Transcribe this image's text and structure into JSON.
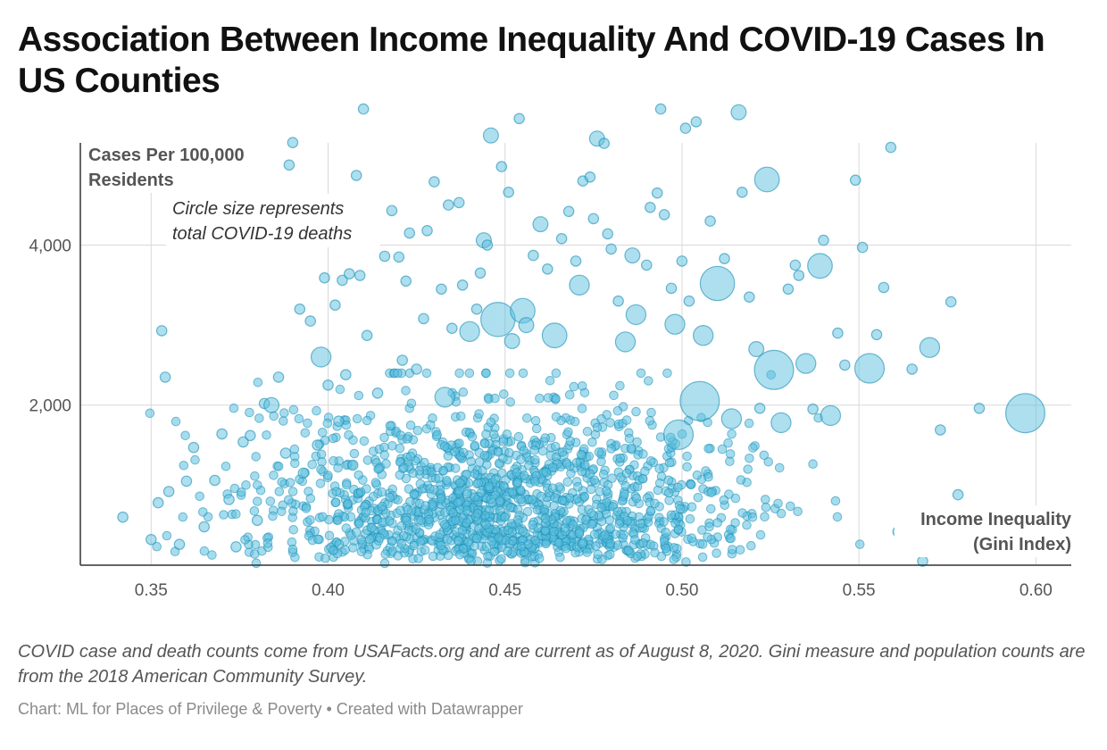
{
  "title": "Association Between Income Inequality And COVID-19 Cases In US Counties",
  "footnote": "COVID case and death counts come from USAFacts.org and are current as of August 8, 2020. Gini measure and population counts are from the 2018 American Community Survey.",
  "credit": "Chart: ML for Places of Privilege & Poverty • Created with Datawrapper",
  "chart_data": {
    "type": "scatter",
    "title": "Association Between Income Inequality And COVID-19 Cases In US Counties",
    "xlabel": "Income Inequality (Gini Index)",
    "xlabel_lines": [
      "Income Inequality",
      "(Gini Index)"
    ],
    "ylabel": "Cases Per 100,000 Residents",
    "ylabel_lines": [
      "Cases Per 100,000",
      "Residents"
    ],
    "size_note_lines": [
      "Circle size represents",
      "total COVID-19 deaths"
    ],
    "xlim": [
      0.33,
      0.61
    ],
    "ylim": [
      0,
      5500
    ],
    "x_ticks": [
      0.35,
      0.4,
      0.45,
      0.5,
      0.55,
      0.6
    ],
    "x_tick_labels": [
      "0.35",
      "0.40",
      "0.45",
      "0.50",
      "0.55",
      "0.60"
    ],
    "y_ticks": [
      2000,
      4000
    ],
    "y_tick_labels": [
      "2,000",
      "4,000"
    ],
    "grid": true,
    "point_color": "#5bc0de",
    "point_stroke": "#1a8db5",
    "points": [
      {
        "x": 0.342,
        "y": 600,
        "r": 1
      },
      {
        "x": 0.35,
        "y": 320,
        "r": 1
      },
      {
        "x": 0.352,
        "y": 780,
        "r": 1
      },
      {
        "x": 0.353,
        "y": 2930,
        "r": 1
      },
      {
        "x": 0.354,
        "y": 2350,
        "r": 1
      },
      {
        "x": 0.355,
        "y": 920,
        "r": 1
      },
      {
        "x": 0.358,
        "y": 260,
        "r": 1
      },
      {
        "x": 0.36,
        "y": 1050,
        "r": 1
      },
      {
        "x": 0.362,
        "y": 1470,
        "r": 1
      },
      {
        "x": 0.365,
        "y": 480,
        "r": 1
      },
      {
        "x": 0.368,
        "y": 1060,
        "r": 1
      },
      {
        "x": 0.37,
        "y": 1640,
        "r": 1
      },
      {
        "x": 0.372,
        "y": 820,
        "r": 1
      },
      {
        "x": 0.374,
        "y": 230,
        "r": 1
      },
      {
        "x": 0.376,
        "y": 1540,
        "r": 1
      },
      {
        "x": 0.378,
        "y": 1620,
        "r": 1
      },
      {
        "x": 0.38,
        "y": 560,
        "r": 1
      },
      {
        "x": 0.382,
        "y": 2020,
        "r": 1
      },
      {
        "x": 0.384,
        "y": 2000,
        "r": 2
      },
      {
        "x": 0.386,
        "y": 2350,
        "r": 1
      },
      {
        "x": 0.388,
        "y": 1400,
        "r": 1
      },
      {
        "x": 0.389,
        "y": 5000,
        "r": 1
      },
      {
        "x": 0.39,
        "y": 5280,
        "r": 1
      },
      {
        "x": 0.392,
        "y": 3200,
        "r": 1
      },
      {
        "x": 0.393,
        "y": 1150,
        "r": 1
      },
      {
        "x": 0.395,
        "y": 3050,
        "r": 1
      },
      {
        "x": 0.397,
        "y": 1500,
        "r": 1
      },
      {
        "x": 0.399,
        "y": 3590,
        "r": 1
      },
      {
        "x": 0.4,
        "y": 2250,
        "r": 1
      },
      {
        "x": 0.398,
        "y": 2600,
        "r": 3
      },
      {
        "x": 0.402,
        "y": 3250,
        "r": 1
      },
      {
        "x": 0.403,
        "y": 1800,
        "r": 1
      },
      {
        "x": 0.404,
        "y": 3560,
        "r": 1
      },
      {
        "x": 0.405,
        "y": 2380,
        "r": 1
      },
      {
        "x": 0.406,
        "y": 3640,
        "r": 1
      },
      {
        "x": 0.407,
        "y": 1250,
        "r": 1
      },
      {
        "x": 0.408,
        "y": 4870,
        "r": 1
      },
      {
        "x": 0.409,
        "y": 3620,
        "r": 1
      },
      {
        "x": 0.41,
        "y": 5700,
        "r": 1
      },
      {
        "x": 0.411,
        "y": 2870,
        "r": 1
      },
      {
        "x": 0.412,
        "y": 4300,
        "r": 1
      },
      {
        "x": 0.414,
        "y": 2150,
        "r": 1
      },
      {
        "x": 0.416,
        "y": 3860,
        "r": 1
      },
      {
        "x": 0.418,
        "y": 4430,
        "r": 1
      },
      {
        "x": 0.42,
        "y": 3850,
        "r": 1
      },
      {
        "x": 0.421,
        "y": 2560,
        "r": 1
      },
      {
        "x": 0.422,
        "y": 3550,
        "r": 1
      },
      {
        "x": 0.423,
        "y": 4150,
        "r": 1
      },
      {
        "x": 0.425,
        "y": 2450,
        "r": 1
      },
      {
        "x": 0.427,
        "y": 3080,
        "r": 1
      },
      {
        "x": 0.428,
        "y": 4180,
        "r": 1
      },
      {
        "x": 0.43,
        "y": 4790,
        "r": 1
      },
      {
        "x": 0.432,
        "y": 3450,
        "r": 1
      },
      {
        "x": 0.433,
        "y": 2100,
        "r": 3
      },
      {
        "x": 0.434,
        "y": 4500,
        "r": 1
      },
      {
        "x": 0.435,
        "y": 2960,
        "r": 1
      },
      {
        "x": 0.437,
        "y": 4530,
        "r": 1
      },
      {
        "x": 0.438,
        "y": 3500,
        "r": 1
      },
      {
        "x": 0.44,
        "y": 2920,
        "r": 3
      },
      {
        "x": 0.442,
        "y": 3200,
        "r": 1
      },
      {
        "x": 0.443,
        "y": 3650,
        "r": 1
      },
      {
        "x": 0.444,
        "y": 4060,
        "r": 2
      },
      {
        "x": 0.445,
        "y": 4000,
        "r": 1
      },
      {
        "x": 0.446,
        "y": 5370,
        "r": 2
      },
      {
        "x": 0.448,
        "y": 3070,
        "r": 6
      },
      {
        "x": 0.449,
        "y": 4980,
        "r": 1
      },
      {
        "x": 0.451,
        "y": 4660,
        "r": 1
      },
      {
        "x": 0.452,
        "y": 2800,
        "r": 2
      },
      {
        "x": 0.454,
        "y": 5580,
        "r": 1
      },
      {
        "x": 0.455,
        "y": 3180,
        "r": 4
      },
      {
        "x": 0.456,
        "y": 3000,
        "r": 2
      },
      {
        "x": 0.458,
        "y": 3870,
        "r": 1
      },
      {
        "x": 0.46,
        "y": 4260,
        "r": 2
      },
      {
        "x": 0.462,
        "y": 3700,
        "r": 1
      },
      {
        "x": 0.464,
        "y": 2870,
        "r": 4
      },
      {
        "x": 0.466,
        "y": 4080,
        "r": 1
      },
      {
        "x": 0.468,
        "y": 4420,
        "r": 1
      },
      {
        "x": 0.47,
        "y": 3800,
        "r": 1
      },
      {
        "x": 0.471,
        "y": 3500,
        "r": 3
      },
      {
        "x": 0.472,
        "y": 4800,
        "r": 1
      },
      {
        "x": 0.474,
        "y": 4850,
        "r": 1
      },
      {
        "x": 0.475,
        "y": 4330,
        "r": 1
      },
      {
        "x": 0.476,
        "y": 5330,
        "r": 2
      },
      {
        "x": 0.478,
        "y": 5270,
        "r": 1
      },
      {
        "x": 0.479,
        "y": 4140,
        "r": 1
      },
      {
        "x": 0.48,
        "y": 3950,
        "r": 1
      },
      {
        "x": 0.482,
        "y": 3300,
        "r": 1
      },
      {
        "x": 0.484,
        "y": 2790,
        "r": 3
      },
      {
        "x": 0.486,
        "y": 3870,
        "r": 2
      },
      {
        "x": 0.487,
        "y": 3130,
        "r": 3
      },
      {
        "x": 0.49,
        "y": 3750,
        "r": 1
      },
      {
        "x": 0.491,
        "y": 4470,
        "r": 1
      },
      {
        "x": 0.493,
        "y": 4650,
        "r": 1
      },
      {
        "x": 0.494,
        "y": 5700,
        "r": 1
      },
      {
        "x": 0.495,
        "y": 4380,
        "r": 1
      },
      {
        "x": 0.497,
        "y": 3460,
        "r": 1
      },
      {
        "x": 0.498,
        "y": 3010,
        "r": 3
      },
      {
        "x": 0.499,
        "y": 1630,
        "r": 5
      },
      {
        "x": 0.5,
        "y": 3800,
        "r": 1
      },
      {
        "x": 0.501,
        "y": 5460,
        "r": 1
      },
      {
        "x": 0.502,
        "y": 3300,
        "r": 1
      },
      {
        "x": 0.504,
        "y": 5540,
        "r": 1
      },
      {
        "x": 0.505,
        "y": 2050,
        "r": 7
      },
      {
        "x": 0.506,
        "y": 2870,
        "r": 3
      },
      {
        "x": 0.508,
        "y": 4300,
        "r": 1
      },
      {
        "x": 0.51,
        "y": 3520,
        "r": 6
      },
      {
        "x": 0.512,
        "y": 3830,
        "r": 1
      },
      {
        "x": 0.514,
        "y": 1830,
        "r": 3
      },
      {
        "x": 0.516,
        "y": 5660,
        "r": 2
      },
      {
        "x": 0.517,
        "y": 4660,
        "r": 1
      },
      {
        "x": 0.519,
        "y": 3350,
        "r": 1
      },
      {
        "x": 0.521,
        "y": 2700,
        "r": 2
      },
      {
        "x": 0.522,
        "y": 1960,
        "r": 1
      },
      {
        "x": 0.524,
        "y": 4820,
        "r": 4
      },
      {
        "x": 0.526,
        "y": 2440,
        "r": 7
      },
      {
        "x": 0.528,
        "y": 1780,
        "r": 3
      },
      {
        "x": 0.53,
        "y": 3450,
        "r": 1
      },
      {
        "x": 0.532,
        "y": 3750,
        "r": 1
      },
      {
        "x": 0.533,
        "y": 3620,
        "r": 1
      },
      {
        "x": 0.535,
        "y": 2520,
        "r": 3
      },
      {
        "x": 0.537,
        "y": 1950,
        "r": 1
      },
      {
        "x": 0.539,
        "y": 3740,
        "r": 4
      },
      {
        "x": 0.54,
        "y": 4060,
        "r": 1
      },
      {
        "x": 0.542,
        "y": 1870,
        "r": 3
      },
      {
        "x": 0.544,
        "y": 2900,
        "r": 1
      },
      {
        "x": 0.546,
        "y": 2500,
        "r": 1
      },
      {
        "x": 0.549,
        "y": 4810,
        "r": 1
      },
      {
        "x": 0.551,
        "y": 3970,
        "r": 1
      },
      {
        "x": 0.553,
        "y": 2460,
        "r": 5
      },
      {
        "x": 0.555,
        "y": 2880,
        "r": 1
      },
      {
        "x": 0.557,
        "y": 3470,
        "r": 1
      },
      {
        "x": 0.559,
        "y": 5220,
        "r": 1
      },
      {
        "x": 0.561,
        "y": 420,
        "r": 1
      },
      {
        "x": 0.565,
        "y": 2450,
        "r": 1
      },
      {
        "x": 0.568,
        "y": 50,
        "r": 1
      },
      {
        "x": 0.57,
        "y": 2720,
        "r": 3
      },
      {
        "x": 0.573,
        "y": 1690,
        "r": 1
      },
      {
        "x": 0.576,
        "y": 3290,
        "r": 1
      },
      {
        "x": 0.578,
        "y": 880,
        "r": 1
      },
      {
        "x": 0.58,
        "y": 270,
        "r": 1
      },
      {
        "x": 0.584,
        "y": 1960,
        "r": 1
      },
      {
        "x": 0.597,
        "y": 1900,
        "r": 7
      }
    ]
  }
}
